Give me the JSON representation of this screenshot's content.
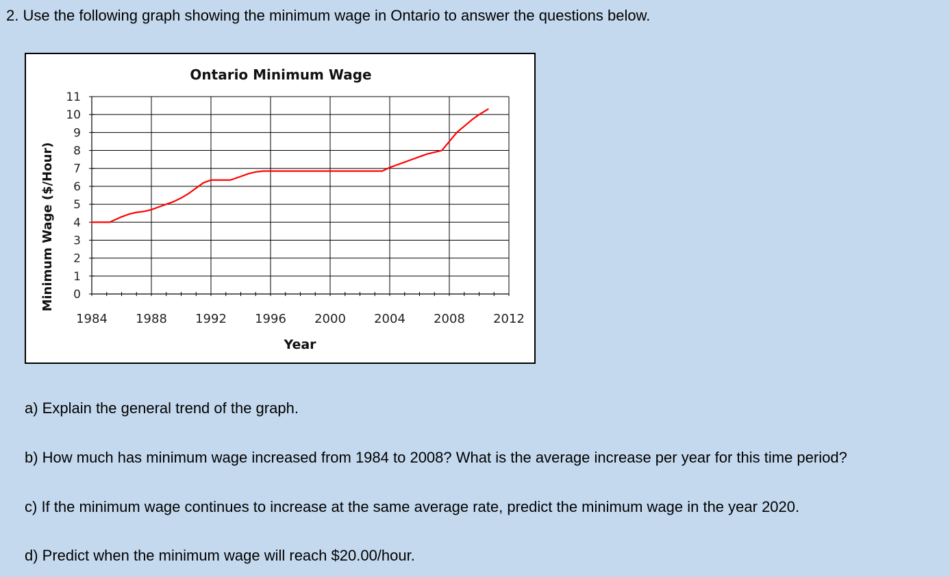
{
  "intro": "2. Use the following graph showing the minimum wage in Ontario to answer the questions below.",
  "questions": {
    "a": "a) Explain the general trend of the graph.",
    "b": "b) How much has minimum wage increased from 1984 to 2008? What is the average increase per year for this time period?",
    "c": "c) If the minimum wage continues to increase at the same average rate, predict the minimum wage in the year 2020.",
    "d": "d) Predict when the minimum wage will reach $20.00/hour."
  },
  "chart_data": {
    "type": "line",
    "title": "Ontario Minimum Wage",
    "xlabel": "Year",
    "ylabel": "Minimum Wage ($/Hour)",
    "xlim": [
      1984,
      2012
    ],
    "ylim": [
      0,
      11
    ],
    "x_ticks": [
      1984,
      1988,
      1992,
      1996,
      2000,
      2004,
      2008,
      2012
    ],
    "y_ticks": [
      0,
      1,
      2,
      3,
      4,
      5,
      6,
      7,
      8,
      9,
      10,
      11
    ],
    "grid": true,
    "line_color": "#ff0000",
    "series": [
      {
        "x": [
          1984,
          1985.2,
          1986,
          1986.5,
          1987,
          1987.5,
          1988,
          1988.5,
          1989,
          1989.5,
          1990,
          1990.5,
          1991,
          1991.5,
          1992,
          1992.5,
          1993,
          1993.3,
          1994,
          1994.5,
          1995,
          1995.5,
          2000,
          2003.5,
          2004,
          2004.5,
          2005,
          2005.5,
          2006,
          2006.5,
          2007,
          2007.5,
          2008,
          2008.5,
          2009,
          2009.5,
          2010,
          2010.6
        ],
        "y": [
          4.0,
          4.0,
          4.3,
          4.45,
          4.55,
          4.6,
          4.7,
          4.85,
          5.0,
          5.15,
          5.35,
          5.6,
          5.9,
          6.2,
          6.35,
          6.35,
          6.35,
          6.35,
          6.55,
          6.7,
          6.8,
          6.85,
          6.85,
          6.85,
          7.05,
          7.2,
          7.35,
          7.5,
          7.65,
          7.8,
          7.9,
          8.0,
          8.5,
          9.0,
          9.35,
          9.7,
          10.0,
          10.3
        ]
      }
    ]
  }
}
